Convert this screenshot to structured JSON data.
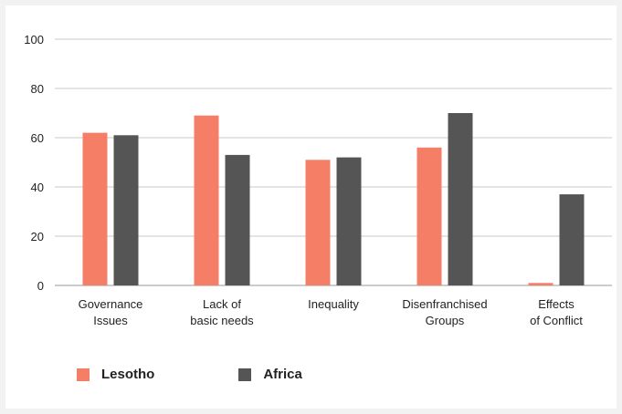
{
  "colors": {
    "lesotho": "#f47f66",
    "africa": "#555555"
  },
  "legend": [
    {
      "name": "Lesotho",
      "color_key": "lesotho"
    },
    {
      "name": "Africa",
      "color_key": "africa"
    }
  ],
  "chart_data": {
    "type": "bar",
    "title": "",
    "xlabel": "",
    "ylabel": "",
    "ylim": [
      0,
      100
    ],
    "yticks": [
      0,
      20,
      40,
      60,
      80,
      100
    ],
    "grid": true,
    "legend_position": "bottom-left",
    "categories": [
      [
        "Governance",
        "Issues"
      ],
      [
        "Lack of",
        "basic needs"
      ],
      [
        "Inequality"
      ],
      [
        "Disenfranchised",
        "Groups"
      ],
      [
        "Effects",
        "of Conflict"
      ]
    ],
    "series": [
      {
        "name": "Lesotho",
        "values": [
          62,
          69,
          51,
          56,
          1
        ]
      },
      {
        "name": "Africa",
        "values": [
          61,
          53,
          52,
          70,
          37
        ]
      }
    ]
  }
}
